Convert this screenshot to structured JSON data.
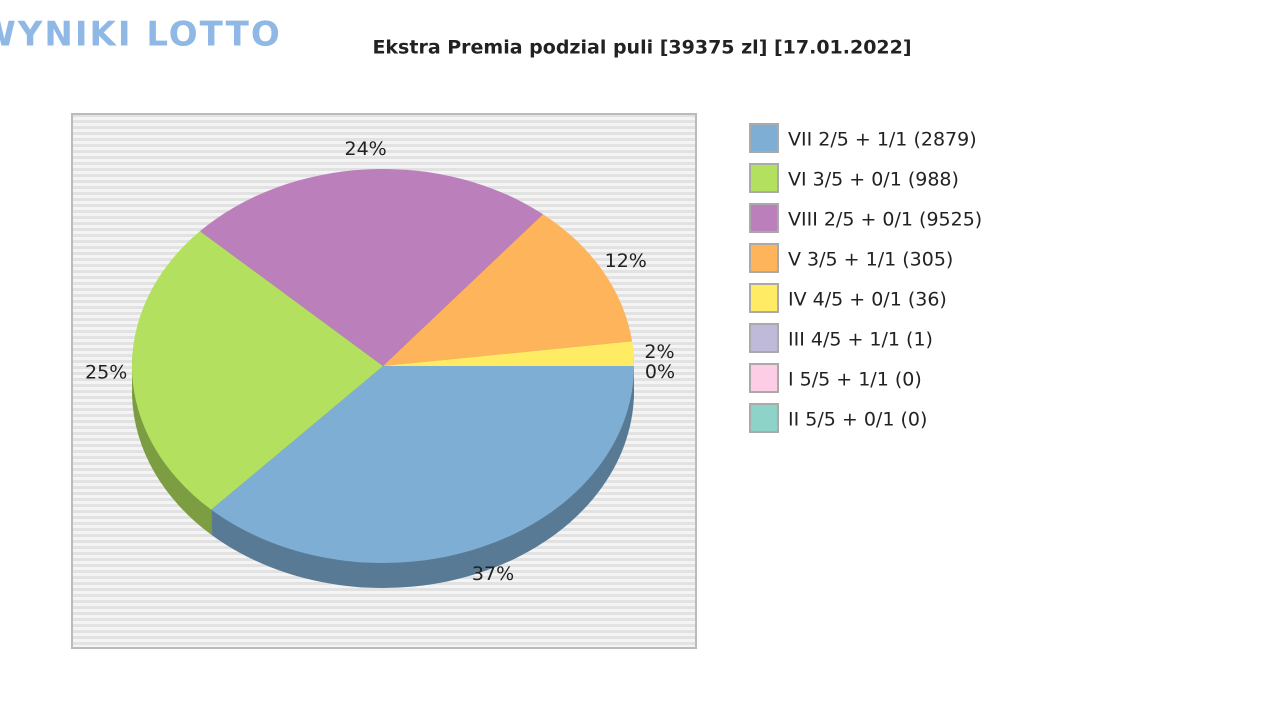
{
  "logo": "WYNIKI LOTTO",
  "chart_data": {
    "type": "pie",
    "title": "Ekstra Premia podzial puli [39375 zl] [17.01.2022]",
    "series": [
      {
        "name": "VII 2/5 + 1/1 (2879)",
        "color": "#7eaed4"
      },
      {
        "name": "VI 3/5 + 0/1 (988)",
        "color": "#b3e05f"
      },
      {
        "name": "VIII 2/5 + 0/1 (9525)",
        "color": "#bb7fbc"
      },
      {
        "name": "V 3/5 + 1/1 (305)",
        "color": "#fdb45b"
      },
      {
        "name": "IV 4/5 + 0/1 (36)",
        "color": "#ffeb64"
      },
      {
        "name": "III 4/5 + 1/1 (1)",
        "color": "#bfb9da"
      },
      {
        "name": "I 5/5 + 1/1 (0)",
        "color": "#fccde5"
      },
      {
        "name": "II 5/5 + 0/1 (0)",
        "color": "#8dd3c7"
      }
    ],
    "values": [
      37,
      25,
      24,
      12,
      2,
      0,
      0,
      0
    ],
    "value_labels": [
      "37%",
      "25%",
      "24%",
      "12%",
      "2%",
      "0%",
      null,
      null
    ],
    "legend": "right"
  }
}
